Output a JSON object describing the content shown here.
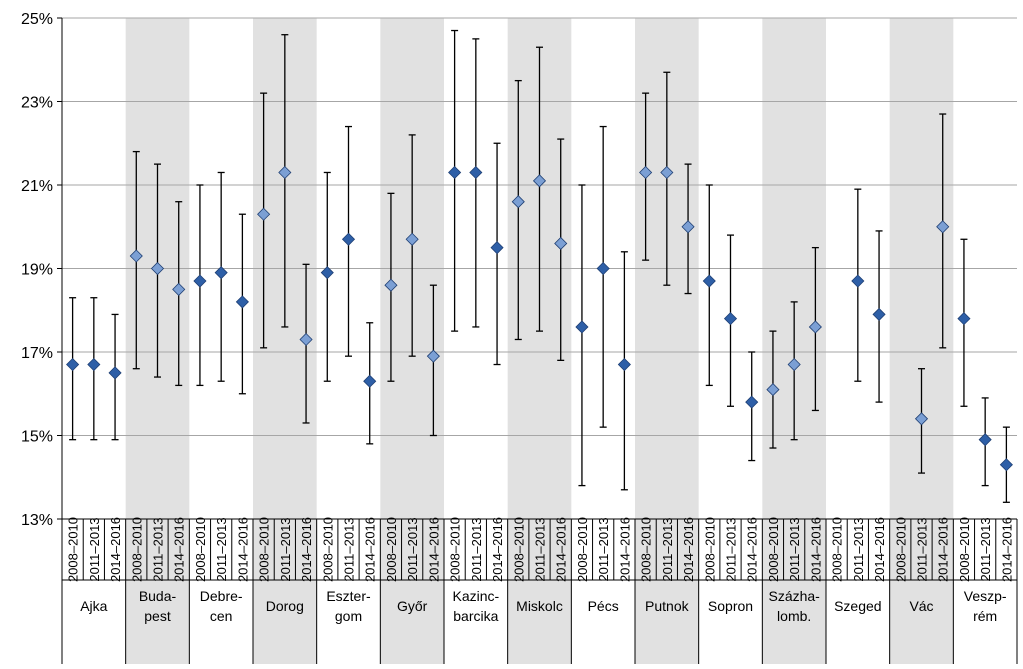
{
  "chart_data": {
    "type": "scatter",
    "subtype": "point-with-error-bars",
    "ylim": [
      13,
      25
    ],
    "yticks": [
      13,
      15,
      17,
      19,
      21,
      23,
      25
    ],
    "ytick_labels": [
      "13%",
      "15%",
      "17%",
      "19%",
      "21%",
      "23%",
      "25%"
    ],
    "grid": "horizontal",
    "periods": [
      "2008–2010",
      "2011–2013",
      "2014–2016"
    ],
    "shading_color": "#e1e1e1",
    "colors": {
      "marker_dark": "#2e5fa7",
      "marker_light": "#7b9fd4",
      "error_bar": "#000000",
      "grid": "#a6a6a6"
    },
    "groups": [
      {
        "label": [
          "Ajka"
        ],
        "shaded": false,
        "points": [
          {
            "period": "2008–2010",
            "value": 16.7,
            "low": 14.9,
            "high": 18.3
          },
          {
            "period": "2011–2013",
            "value": 16.7,
            "low": 14.9,
            "high": 18.3
          },
          {
            "period": "2014–2016",
            "value": 16.5,
            "low": 14.9,
            "high": 17.9
          }
        ]
      },
      {
        "label": [
          "Buda-",
          "pest"
        ],
        "shaded": true,
        "points": [
          {
            "period": "2008–2010",
            "value": 19.3,
            "low": 16.6,
            "high": 21.8
          },
          {
            "period": "2011–2013",
            "value": 19.0,
            "low": 16.4,
            "high": 21.5
          },
          {
            "period": "2014–2016",
            "value": 18.5,
            "low": 16.2,
            "high": 20.6
          }
        ]
      },
      {
        "label": [
          "Debre-",
          "cen"
        ],
        "shaded": false,
        "points": [
          {
            "period": "2008–2010",
            "value": 18.7,
            "low": 16.2,
            "high": 21.0
          },
          {
            "period": "2011–2013",
            "value": 18.9,
            "low": 16.3,
            "high": 21.3
          },
          {
            "period": "2014–2016",
            "value": 18.2,
            "low": 16.0,
            "high": 20.3
          }
        ]
      },
      {
        "label": [
          "Dorog"
        ],
        "shaded": true,
        "points": [
          {
            "period": "2008–2010",
            "value": 20.3,
            "low": 17.1,
            "high": 23.2
          },
          {
            "period": "2011–2013",
            "value": 21.3,
            "low": 17.6,
            "high": 24.6
          },
          {
            "period": "2014–2016",
            "value": 17.3,
            "low": 15.3,
            "high": 19.1
          }
        ]
      },
      {
        "label": [
          "Eszter-",
          "gom"
        ],
        "shaded": false,
        "points": [
          {
            "period": "2008–2010",
            "value": 18.9,
            "low": 16.3,
            "high": 21.3
          },
          {
            "period": "2011–2013",
            "value": 19.7,
            "low": 16.9,
            "high": 22.4
          },
          {
            "period": "2014–2016",
            "value": 16.3,
            "low": 14.8,
            "high": 17.7
          }
        ]
      },
      {
        "label": [
          "Győr"
        ],
        "shaded": true,
        "points": [
          {
            "period": "2008–2010",
            "value": 18.6,
            "low": 16.3,
            "high": 20.8
          },
          {
            "period": "2011–2013",
            "value": 19.7,
            "low": 16.9,
            "high": 22.2
          },
          {
            "period": "2014–2016",
            "value": 16.9,
            "low": 15.0,
            "high": 18.6
          }
        ]
      },
      {
        "label": [
          "Kazinc-",
          "barcika"
        ],
        "shaded": false,
        "points": [
          {
            "period": "2008–2010",
            "value": 21.3,
            "low": 17.5,
            "high": 24.7
          },
          {
            "period": "2011–2013",
            "value": 21.3,
            "low": 17.6,
            "high": 24.5
          },
          {
            "period": "2014–2016",
            "value": 19.5,
            "low": 16.7,
            "high": 22.0
          }
        ]
      },
      {
        "label": [
          "Miskolc"
        ],
        "shaded": true,
        "points": [
          {
            "period": "2008–2010",
            "value": 20.6,
            "low": 17.3,
            "high": 23.5
          },
          {
            "period": "2011–2013",
            "value": 21.1,
            "low": 17.5,
            "high": 24.3
          },
          {
            "period": "2014–2016",
            "value": 19.6,
            "low": 16.8,
            "high": 22.1
          }
        ]
      },
      {
        "label": [
          "Pécs"
        ],
        "shaded": false,
        "points": [
          {
            "period": "2008–2010",
            "value": 17.6,
            "low": 13.8,
            "high": 21.0
          },
          {
            "period": "2011–2013",
            "value": 19.0,
            "low": 15.2,
            "high": 22.4
          },
          {
            "period": "2014–2016",
            "value": 16.7,
            "low": 13.7,
            "high": 19.4
          }
        ]
      },
      {
        "label": [
          "Putnok"
        ],
        "shaded": true,
        "points": [
          {
            "period": "2008–2010",
            "value": 21.3,
            "low": 19.2,
            "high": 23.2
          },
          {
            "period": "2011–2013",
            "value": 21.3,
            "low": 18.6,
            "high": 23.7
          },
          {
            "period": "2014–2016",
            "value": 20.0,
            "low": 18.4,
            "high": 21.5
          }
        ]
      },
      {
        "label": [
          "Sopron"
        ],
        "shaded": false,
        "points": [
          {
            "period": "2008–2010",
            "value": 18.7,
            "low": 16.2,
            "high": 21.0
          },
          {
            "period": "2011–2013",
            "value": 17.8,
            "low": 15.7,
            "high": 19.8
          },
          {
            "period": "2014–2016",
            "value": 15.8,
            "low": 14.4,
            "high": 17.0
          }
        ]
      },
      {
        "label": [
          "Százha-",
          "lomb."
        ],
        "shaded": true,
        "points": [
          {
            "period": "2008–2010",
            "value": 16.1,
            "low": 14.7,
            "high": 17.5
          },
          {
            "period": "2011–2013",
            "value": 16.7,
            "low": 14.9,
            "high": 18.2
          },
          {
            "period": "2014–2016",
            "value": 17.6,
            "low": 15.6,
            "high": 19.5
          }
        ]
      },
      {
        "label": [
          "Szeged"
        ],
        "shaded": false,
        "points": [
          {
            "period": "2011–2013",
            "value": 18.7,
            "low": 16.3,
            "high": 20.9
          },
          {
            "period": "2014–2016",
            "value": 17.9,
            "low": 15.8,
            "high": 19.9
          }
        ]
      },
      {
        "label": [
          "Vác"
        ],
        "shaded": true,
        "points": [
          {
            "period": "2011–2013",
            "value": 15.4,
            "low": 14.1,
            "high": 16.6
          },
          {
            "period": "2014–2016",
            "value": 20.0,
            "low": 17.1,
            "high": 22.7
          }
        ]
      },
      {
        "label": [
          "Veszp-",
          "rém"
        ],
        "shaded": false,
        "points": [
          {
            "period": "2008–2010",
            "value": 17.8,
            "low": 15.7,
            "high": 19.7
          },
          {
            "period": "2011–2013",
            "value": 14.9,
            "low": 13.8,
            "high": 15.9
          },
          {
            "period": "2014–2016",
            "value": 14.3,
            "low": 13.4,
            "high": 15.2
          }
        ]
      }
    ]
  }
}
